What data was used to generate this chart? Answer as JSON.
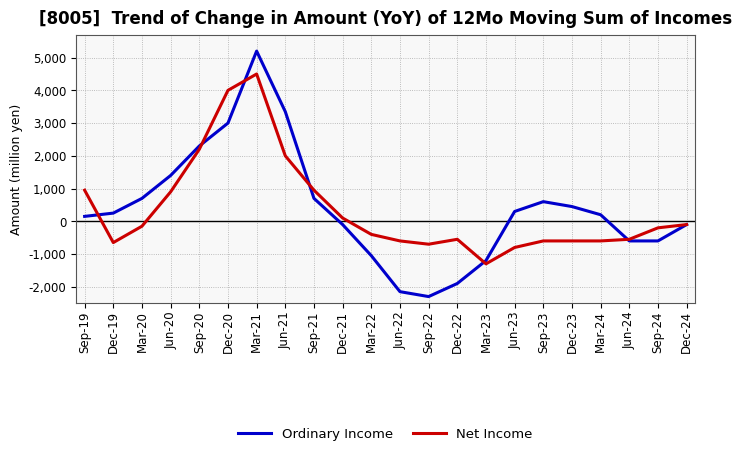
{
  "title": "[8005]  Trend of Change in Amount (YoY) of 12Mo Moving Sum of Incomes",
  "ylabel": "Amount (million yen)",
  "x_labels": [
    "Sep-19",
    "Dec-19",
    "Mar-20",
    "Jun-20",
    "Sep-20",
    "Dec-20",
    "Mar-21",
    "Jun-21",
    "Sep-21",
    "Dec-21",
    "Mar-22",
    "Jun-22",
    "Sep-22",
    "Dec-22",
    "Mar-23",
    "Jun-23",
    "Sep-23",
    "Dec-23",
    "Mar-24",
    "Jun-24",
    "Sep-24",
    "Dec-24"
  ],
  "ordinary_income": [
    150,
    250,
    700,
    1400,
    2300,
    3000,
    5200,
    3350,
    700,
    -100,
    -1050,
    -2150,
    -2300,
    -1900,
    -1200,
    300,
    600,
    450,
    200,
    -600,
    -600,
    -100
  ],
  "net_income": [
    950,
    -650,
    -150,
    900,
    2200,
    4000,
    4500,
    2000,
    950,
    100,
    -400,
    -600,
    -700,
    -550,
    -1300,
    -800,
    -600,
    -600,
    -600,
    -550,
    -200,
    -100
  ],
  "ordinary_color": "#0000cc",
  "net_color": "#cc0000",
  "background_color": "#ffffff",
  "plot_bg_color": "#f8f8f8",
  "ylim": [
    -2500,
    5700
  ],
  "yticks": [
    -2000,
    -1000,
    0,
    1000,
    2000,
    3000,
    4000,
    5000
  ],
  "legend_labels": [
    "Ordinary Income",
    "Net Income"
  ],
  "line_width": 2.2,
  "title_fontsize": 12,
  "axis_fontsize": 9,
  "tick_fontsize": 8.5
}
